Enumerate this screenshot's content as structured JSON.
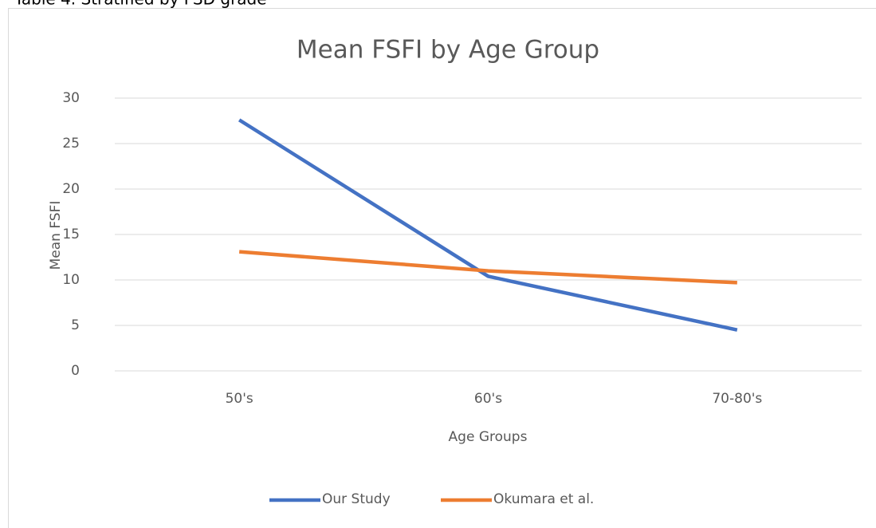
{
  "caption": "Table 4. Stratified by FSD grade",
  "chart_data": {
    "type": "line",
    "title": "Mean FSFI by Age Group",
    "x_label": "Age Groups",
    "y_label": "Mean FSFI",
    "categories": [
      "50's",
      "60's",
      "70-80's"
    ],
    "series": [
      {
        "name": "Our Study",
        "color": "#4472c4",
        "values": [
          27.6,
          10.4,
          4.5
        ]
      },
      {
        "name": "Okumara et al.",
        "color": "#ed7d31",
        "values": [
          13.1,
          11.0,
          9.7
        ]
      }
    ],
    "ylim": [
      0,
      30
    ],
    "yticks": [
      0,
      5,
      10,
      15,
      20,
      25,
      30
    ],
    "grid": true,
    "legend": "bottom"
  }
}
